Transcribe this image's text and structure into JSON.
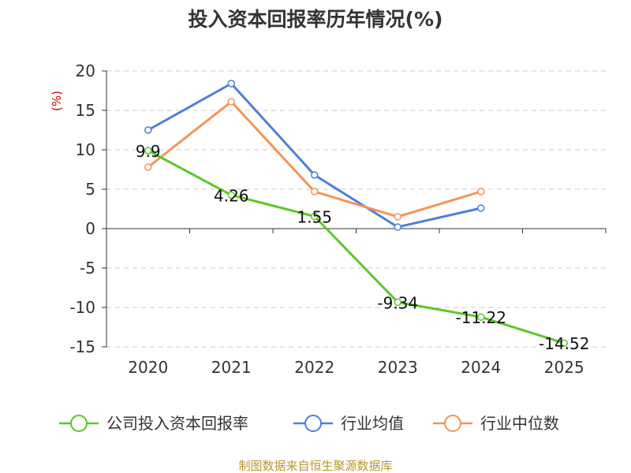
{
  "chart_data": {
    "type": "line",
    "title": "投入资本回报率历年情况(%)",
    "ylabel": "(%)",
    "xlabel": "",
    "categories": [
      "2020",
      "2021",
      "2022",
      "2023",
      "2024",
      "2025"
    ],
    "ylim": [
      -15,
      20
    ],
    "yticks": [
      20,
      15,
      10,
      5,
      0,
      -5,
      -10,
      -15
    ],
    "grid": true,
    "legend_position": "bottom",
    "series": [
      {
        "name": "公司投入资本回报率",
        "color": "#5cc72a",
        "values": [
          9.9,
          4.26,
          1.55,
          -9.34,
          -11.22,
          -14.52
        ],
        "labels": [
          "9.9",
          "4.26",
          "1.55",
          "-9.34",
          "-11.22",
          "-14.52"
        ]
      },
      {
        "name": "行业均值",
        "color": "#4f7fd8",
        "values": [
          12.5,
          18.4,
          6.8,
          0.2,
          2.6,
          null
        ]
      },
      {
        "name": "行业中位数",
        "color": "#f79256",
        "values": [
          7.8,
          16.1,
          4.7,
          1.5,
          4.7,
          null
        ]
      }
    ]
  },
  "source": "制图数据来自恒生聚源数据库",
  "colors": {
    "title": "#333333",
    "axis": "#333333",
    "grid": "#cccccc",
    "unit": "#cc0000",
    "source": "#b8962e"
  }
}
